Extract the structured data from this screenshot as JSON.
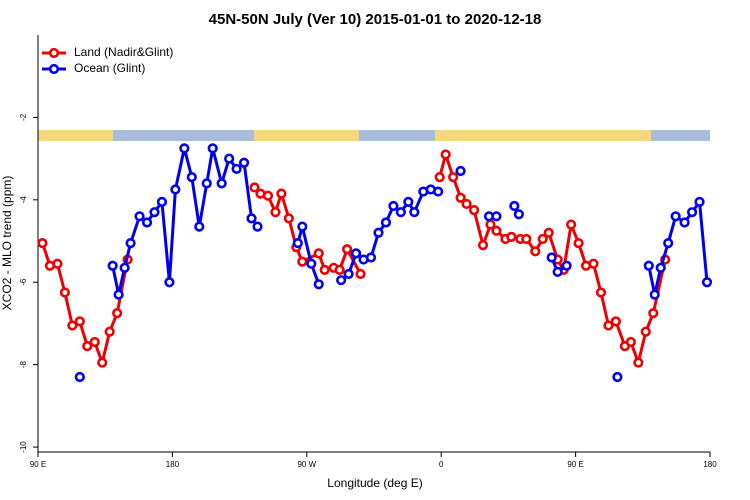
{
  "chart_data": {
    "type": "line",
    "title": "45N-50N July (Ver 10)   2015-01-01 to 2020-12-18",
    "x_label": "Longitude (deg E)",
    "y_label": "XCO2 - MLO trend (ppm)",
    "xlim": [
      90,
      540
    ],
    "ylim": [
      -10.12,
      0
    ],
    "xticks": [
      {
        "value": 90,
        "label": "90 E"
      },
      180,
      {
        "value": 270,
        "label": "90 W"
      },
      {
        "value": 360,
        "label": "0"
      },
      {
        "value": 450,
        "label": "90 E"
      },
      {
        "value": 540,
        "label": "180"
      }
    ],
    "yticks": [
      -10,
      -8,
      -6,
      -4,
      -2
    ],
    "legend": "topleft",
    "series": [
      {
        "name": "Land (Nadir&Glint)",
        "color": "#ee0000",
        "x": [
          93,
          98,
          103,
          108,
          113,
          118,
          123,
          128,
          133,
          138,
          143,
          150,
          null,
          235,
          239,
          244,
          249,
          253,
          258,
          263,
          267,
          278,
          282,
          288,
          292,
          297,
          306,
          null,
          359,
          363,
          368,
          373,
          377,
          382,
          388,
          393,
          397,
          403,
          407,
          413,
          417,
          423,
          428,
          432,
          438,
          442,
          447,
          452,
          457,
          462,
          467,
          472,
          477,
          483,
          487,
          492,
          497,
          502,
          510
        ],
        "values": [
          -5.05,
          -5.6,
          -5.55,
          -6.25,
          -7.05,
          -6.95,
          -7.55,
          -7.45,
          -7.95,
          -7.2,
          -6.75,
          -5.45,
          null,
          -3.7,
          -3.85,
          -3.9,
          -4.3,
          -3.85,
          -4.45,
          -5.15,
          -5.5,
          -5.3,
          -5.7,
          -5.65,
          -5.7,
          -5.2,
          -5.8,
          null,
          -3.45,
          -2.9,
          -3.45,
          -3.95,
          -4.1,
          -4.25,
          -5.1,
          -4.6,
          -4.75,
          -4.95,
          -4.9,
          -4.95,
          -4.95,
          -5.25,
          -4.95,
          -4.8,
          -5.45,
          -5.7,
          -4.6,
          -5.05,
          -5.6,
          -5.55,
          -6.25,
          -7.05,
          -6.95,
          -7.55,
          -7.45,
          -7.95,
          -7.2,
          -6.75,
          -5.45
        ]
      },
      {
        "name": "Ocean (Glint)",
        "color": "#0000ee",
        "x": [
          118,
          null,
          140,
          144,
          148,
          152,
          158,
          163,
          168,
          173,
          178,
          182,
          188,
          193,
          198,
          203,
          207,
          213,
          218,
          223,
          228,
          233,
          237,
          null,
          264,
          267,
          273,
          278,
          null,
          293,
          298,
          303,
          308,
          313,
          318,
          323,
          328,
          333,
          338,
          342,
          348,
          353,
          358,
          null,
          373,
          null,
          392,
          397,
          null,
          409,
          412,
          null,
          434,
          438,
          444,
          null,
          478,
          null,
          499,
          503,
          507,
          512,
          517,
          523,
          528,
          533,
          538
        ],
        "values": [
          -8.3,
          null,
          -5.6,
          -6.3,
          -5.65,
          -5.05,
          -4.4,
          -4.55,
          -4.3,
          -4.05,
          -6.0,
          -3.75,
          -2.75,
          -3.45,
          -4.65,
          -3.6,
          -2.75,
          -3.6,
          -3.0,
          -3.25,
          -3.1,
          -4.45,
          -4.65,
          null,
          -5.05,
          -4.65,
          -5.55,
          -6.05,
          null,
          -5.95,
          -5.8,
          -5.3,
          -5.45,
          -5.4,
          -4.8,
          -4.55,
          -4.15,
          -4.3,
          -4.05,
          -4.3,
          -3.8,
          -3.75,
          -3.8,
          null,
          -3.3,
          null,
          -4.4,
          -4.4,
          null,
          -4.15,
          -4.35,
          null,
          -5.4,
          -5.75,
          -5.6,
          null,
          -8.3,
          null,
          -5.6,
          -6.3,
          -5.65,
          -5.05,
          -4.4,
          -4.55,
          -4.3,
          -4.05,
          -6.0
        ]
      }
    ]
  }
}
